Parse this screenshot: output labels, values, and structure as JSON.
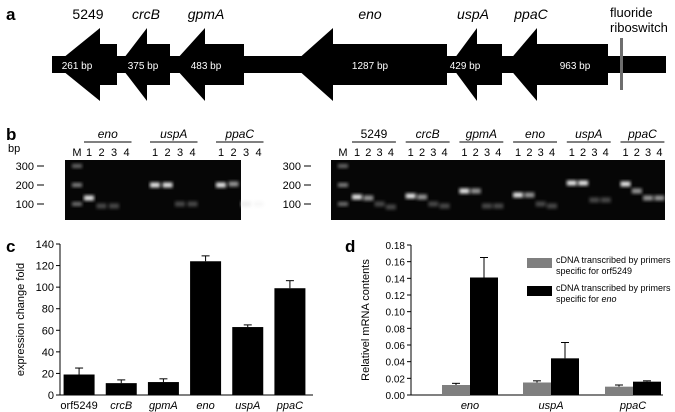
{
  "panel_labels": {
    "a": "a",
    "b": "b",
    "c": "c",
    "d": "d"
  },
  "panel_a": {
    "genes": [
      {
        "name": "5249",
        "italic": false,
        "size": "261 bp"
      },
      {
        "name": "crcB",
        "italic": true,
        "size": "375 bp"
      },
      {
        "name": "gpmA",
        "italic": true,
        "size": "483 bp"
      },
      {
        "name": "eno",
        "italic": true,
        "size": "1287 bp"
      },
      {
        "name": "uspA",
        "italic": true,
        "size": "429 bp"
      },
      {
        "name": "ppaC",
        "italic": true,
        "size": "963 bp"
      }
    ],
    "riboswitch_line1": "fluoride",
    "riboswitch_line2": "riboswitch"
  },
  "panel_b": {
    "bp_label": "bp",
    "ladder": [
      "300",
      "200",
      "100"
    ],
    "marker": "M",
    "lanes": [
      "1",
      "2",
      "3",
      "4"
    ],
    "left_genes": [
      "eno",
      "uspA",
      "ppaC"
    ],
    "right_genes": [
      "5249",
      "crcB",
      "gpmA",
      "eno",
      "uspA",
      "ppaC"
    ]
  },
  "chart_data": [
    {
      "panel": "c",
      "type": "bar",
      "categories": [
        "orf5249",
        "crcB",
        "gpmA",
        "eno",
        "uspA",
        "ppaC"
      ],
      "values": [
        19,
        11,
        12,
        124,
        63,
        99
      ],
      "errors": [
        6,
        3,
        3,
        5,
        2,
        7
      ],
      "ylabel": "expression change fold",
      "ylim": [
        0,
        140
      ],
      "yticks": [
        "0",
        "20",
        "40",
        "60",
        "80",
        "100",
        "120",
        "140"
      ],
      "color": "#000000"
    },
    {
      "panel": "d",
      "type": "bar",
      "categories": [
        "eno",
        "uspA",
        "ppaC"
      ],
      "series": [
        {
          "name": "cDNA transcribed by primers specific for orf5249",
          "values": [
            0.012,
            0.015,
            0.01
          ],
          "errors": [
            0.002,
            0.002,
            0.002
          ],
          "color": "#7f7f7f"
        },
        {
          "name": "cDNA transcribed by primers specific for eno",
          "values": [
            0.141,
            0.044,
            0.016
          ],
          "errors": [
            0.024,
            0.019,
            0.001
          ],
          "color": "#000000"
        }
      ],
      "legend": [
        {
          "line1": "cDNA transcribed by primers",
          "line2": "specific for orf5249",
          "line2_italic": ""
        },
        {
          "line1": "cDNA transcribed by primers",
          "line2": "specific for ",
          "line2_italic": "eno"
        }
      ],
      "ylabel": "Relativel mRNA contents",
      "ylim": [
        0,
        0.18
      ],
      "yticks": [
        "0.00",
        "0.02",
        "0.04",
        "0.06",
        "0.08",
        "0.10",
        "0.12",
        "0.14",
        "0.16",
        "0.18"
      ],
      "legend_position": "top-right"
    }
  ]
}
